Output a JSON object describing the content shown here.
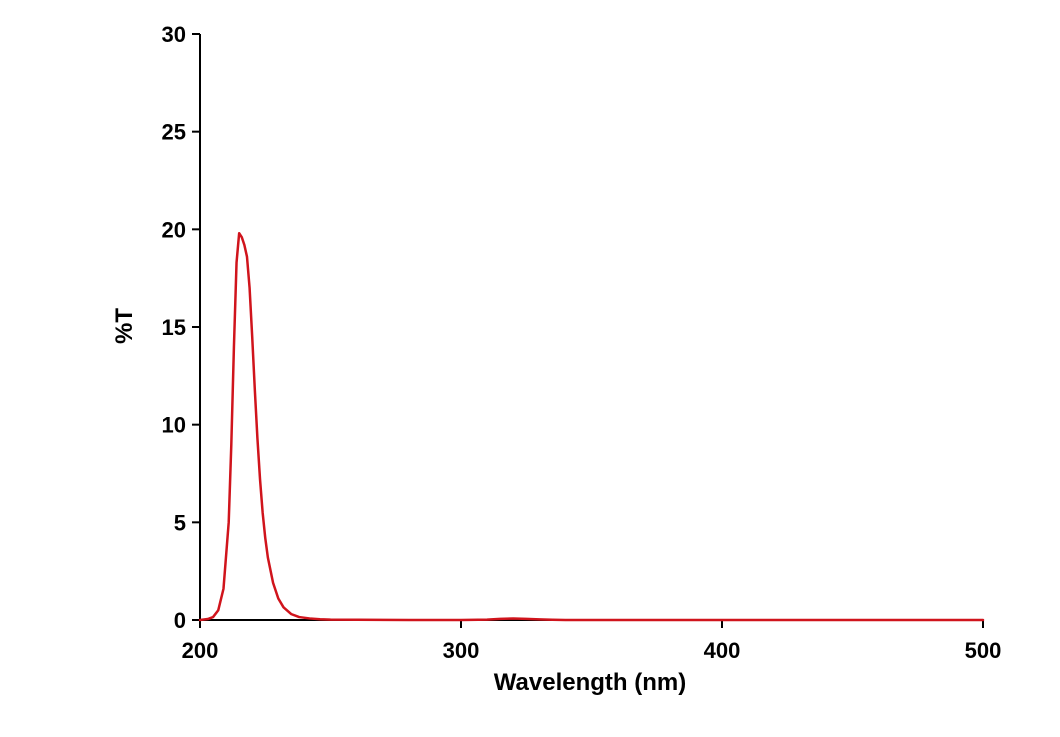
{
  "chart_data": {
    "type": "line",
    "title": "",
    "xlabel": "Wavelength (nm)",
    "ylabel": "%T",
    "xlim": [
      200,
      500
    ],
    "ylim": [
      0,
      30
    ],
    "xticks": [
      200,
      300,
      400,
      500
    ],
    "yticks": [
      0,
      5,
      10,
      15,
      20,
      25,
      30
    ],
    "grid": false,
    "colors": {
      "series": "#d0141c",
      "axis": "#000000"
    },
    "series": [
      {
        "name": "%T",
        "x": [
          200,
          203,
          205,
          207,
          209,
          211,
          212,
          213,
          214,
          215,
          216,
          217,
          218,
          219,
          220,
          221,
          222,
          223,
          224,
          225,
          226,
          228,
          230,
          232,
          235,
          238,
          242,
          246,
          250,
          260,
          280,
          300,
          310,
          315,
          320,
          325,
          330,
          335,
          340,
          360,
          400,
          450,
          500
        ],
        "y": [
          0.0,
          0.05,
          0.15,
          0.5,
          1.6,
          5.0,
          9.0,
          14.0,
          18.3,
          19.8,
          19.6,
          19.2,
          18.6,
          17.0,
          14.5,
          11.8,
          9.3,
          7.2,
          5.5,
          4.2,
          3.2,
          1.9,
          1.1,
          0.65,
          0.3,
          0.15,
          0.08,
          0.04,
          0.02,
          0.01,
          0.0,
          0.0,
          0.02,
          0.06,
          0.08,
          0.06,
          0.03,
          0.01,
          0.0,
          0.0,
          0.0,
          0.0,
          0.0
        ]
      }
    ]
  }
}
